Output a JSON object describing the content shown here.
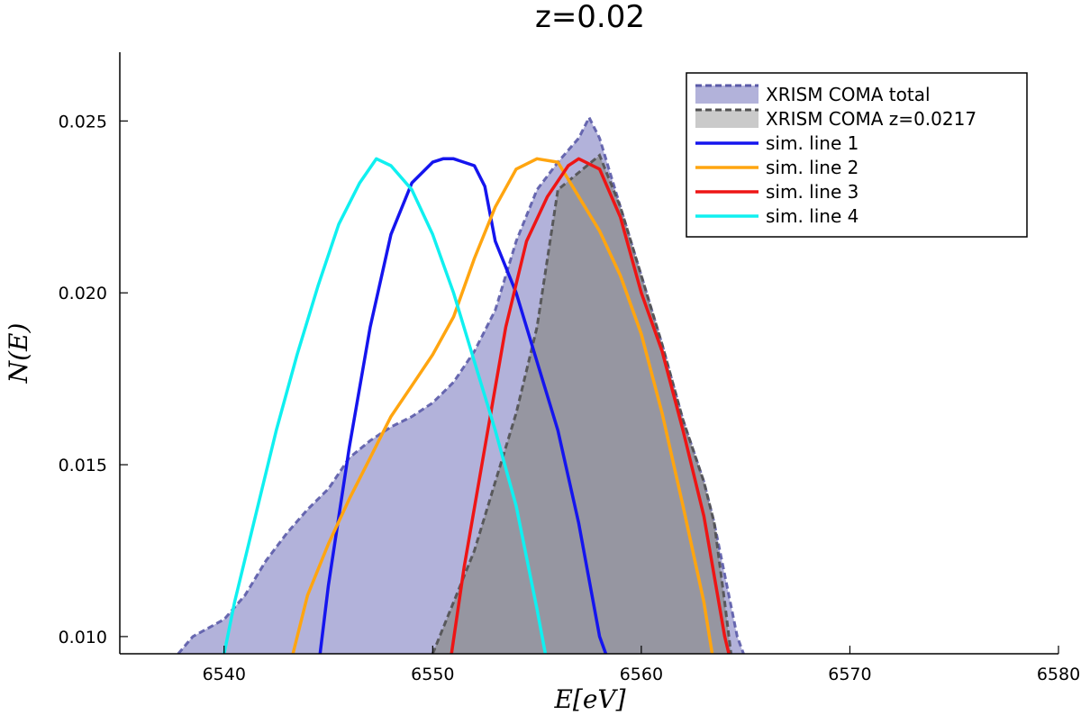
{
  "chart_data": {
    "type": "area",
    "title": "z=0.02",
    "xlabel": "E[eV]",
    "ylabel": "N(E)",
    "xlim": [
      6535,
      6580
    ],
    "ylim": [
      0.0095,
      0.027
    ],
    "xticks": [
      6540,
      6550,
      6560,
      6570,
      6580
    ],
    "yticks": [
      0.01,
      0.015,
      0.02,
      0.025
    ],
    "xtick_labels": [
      "6540",
      "6550",
      "6560",
      "6570",
      "6580"
    ],
    "ytick_labels": [
      "0.010",
      "0.015",
      "0.020",
      "0.025"
    ],
    "grid": false,
    "legend_position": "top-right",
    "series": [
      {
        "name": "XRISM COMA total",
        "kind": "area",
        "color": "#7b7bbf",
        "points": [
          [
            6537.8,
            0.0095
          ],
          [
            6538.5,
            0.01
          ],
          [
            6540,
            0.0105
          ],
          [
            6541,
            0.0112
          ],
          [
            6542,
            0.0122
          ],
          [
            6543,
            0.013
          ],
          [
            6544,
            0.0137
          ],
          [
            6545,
            0.0143
          ],
          [
            6546,
            0.0152
          ],
          [
            6547,
            0.0157
          ],
          [
            6548,
            0.0161
          ],
          [
            6549,
            0.0164
          ],
          [
            6550,
            0.0168
          ],
          [
            6551,
            0.0174
          ],
          [
            6552,
            0.0183
          ],
          [
            6553,
            0.0195
          ],
          [
            6554,
            0.0215
          ],
          [
            6555,
            0.023
          ],
          [
            6556,
            0.0238
          ],
          [
            6557,
            0.0245
          ],
          [
            6557.5,
            0.0251
          ],
          [
            6558,
            0.0245
          ],
          [
            6559,
            0.0225
          ],
          [
            6560,
            0.0205
          ],
          [
            6561,
            0.0185
          ],
          [
            6562,
            0.0163
          ],
          [
            6563,
            0.0145
          ],
          [
            6563.5,
            0.0133
          ],
          [
            6564,
            0.0118
          ],
          [
            6564.6,
            0.01
          ],
          [
            6564.9,
            0.0095
          ]
        ]
      },
      {
        "name": "XRISM COMA z=0.0217",
        "kind": "area",
        "color": "#8a8a8a",
        "points": [
          [
            6550,
            0.0095
          ],
          [
            6551,
            0.011
          ],
          [
            6552,
            0.0125
          ],
          [
            6553,
            0.0145
          ],
          [
            6554,
            0.0165
          ],
          [
            6555,
            0.019
          ],
          [
            6556,
            0.023
          ],
          [
            6557,
            0.0235
          ],
          [
            6558,
            0.024
          ],
          [
            6559,
            0.0225
          ],
          [
            6560,
            0.0205
          ],
          [
            6561,
            0.0185
          ],
          [
            6562,
            0.0163
          ],
          [
            6563,
            0.0145
          ],
          [
            6563.5,
            0.0133
          ],
          [
            6564,
            0.011
          ],
          [
            6564.3,
            0.0095
          ]
        ]
      },
      {
        "name": "sim. line 1",
        "kind": "line",
        "color": "#1515ee",
        "points": [
          [
            6544.6,
            0.0095
          ],
          [
            6545,
            0.0115
          ],
          [
            6546,
            0.0155
          ],
          [
            6547,
            0.019
          ],
          [
            6548,
            0.0217
          ],
          [
            6549,
            0.0232
          ],
          [
            6550,
            0.0238
          ],
          [
            6550.5,
            0.0239
          ],
          [
            6551,
            0.0239
          ],
          [
            6552,
            0.0237
          ],
          [
            6552.5,
            0.0231
          ],
          [
            6553,
            0.0215
          ],
          [
            6554,
            0.02
          ],
          [
            6555,
            0.018
          ],
          [
            6556,
            0.016
          ],
          [
            6557,
            0.0133
          ],
          [
            6558,
            0.01
          ],
          [
            6558.3,
            0.0095
          ]
        ]
      },
      {
        "name": "sim. line 2",
        "kind": "line",
        "color": "#ffa510",
        "points": [
          [
            6543.3,
            0.0095
          ],
          [
            6544,
            0.0112
          ],
          [
            6545,
            0.0127
          ],
          [
            6546,
            0.014
          ],
          [
            6547,
            0.0152
          ],
          [
            6548,
            0.0164
          ],
          [
            6549,
            0.0173
          ],
          [
            6550,
            0.0182
          ],
          [
            6551,
            0.0193
          ],
          [
            6552,
            0.021
          ],
          [
            6553,
            0.0225
          ],
          [
            6554,
            0.0236
          ],
          [
            6555,
            0.0239
          ],
          [
            6556,
            0.0238
          ],
          [
            6557,
            0.0228
          ],
          [
            6558,
            0.0218
          ],
          [
            6559,
            0.0205
          ],
          [
            6560,
            0.0188
          ],
          [
            6561,
            0.0165
          ],
          [
            6562,
            0.0138
          ],
          [
            6563,
            0.011
          ],
          [
            6563.4,
            0.0095
          ]
        ]
      },
      {
        "name": "sim. line 3",
        "kind": "line",
        "color": "#ee1515",
        "points": [
          [
            6550.9,
            0.0095
          ],
          [
            6551.5,
            0.012
          ],
          [
            6552.5,
            0.0155
          ],
          [
            6553.5,
            0.019
          ],
          [
            6554.5,
            0.0215
          ],
          [
            6555.5,
            0.0228
          ],
          [
            6556.5,
            0.0237
          ],
          [
            6557,
            0.0239
          ],
          [
            6558,
            0.0236
          ],
          [
            6559,
            0.0222
          ],
          [
            6560,
            0.02
          ],
          [
            6561,
            0.0183
          ],
          [
            6562,
            0.016
          ],
          [
            6563,
            0.0135
          ],
          [
            6564,
            0.01
          ],
          [
            6564.2,
            0.0095
          ]
        ]
      },
      {
        "name": "sim. line 4",
        "kind": "line",
        "color": "#10f0f0",
        "points": [
          [
            6540,
            0.0095
          ],
          [
            6540.5,
            0.011
          ],
          [
            6541.5,
            0.0135
          ],
          [
            6542.5,
            0.016
          ],
          [
            6543.5,
            0.0182
          ],
          [
            6544.5,
            0.0202
          ],
          [
            6545.5,
            0.022
          ],
          [
            6546.5,
            0.0232
          ],
          [
            6547.3,
            0.0239
          ],
          [
            6548,
            0.0237
          ],
          [
            6549,
            0.023
          ],
          [
            6550,
            0.0217
          ],
          [
            6551,
            0.02
          ],
          [
            6552,
            0.018
          ],
          [
            6553,
            0.016
          ],
          [
            6554,
            0.0138
          ],
          [
            6555,
            0.0108
          ],
          [
            6555.4,
            0.0095
          ]
        ]
      }
    ]
  }
}
